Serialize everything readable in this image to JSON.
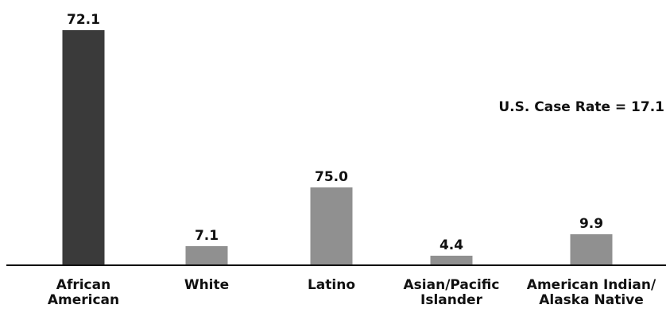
{
  "chart_data": {
    "type": "bar",
    "categories": [
      [
        "African",
        "American"
      ],
      [
        "White"
      ],
      [
        "Latino"
      ],
      [
        "Asian/Pacific",
        "Islander"
      ],
      [
        "American Indian/",
        "Alaska Native"
      ]
    ],
    "values": [
      72.1,
      7.1,
      75.0,
      4.4,
      9.9
    ],
    "value_labels": [
      "72.1",
      "7.1",
      "75.0",
      "4.4",
      "9.9"
    ],
    "bar_colors": [
      "#3a3a3a",
      "#909090",
      "#909090",
      "#909090",
      "#909090"
    ],
    "annotation": "U.S. Case Rate = 17.1",
    "title": "",
    "xlabel": "",
    "ylabel": "",
    "grid": false,
    "legend": "none"
  },
  "colors": {
    "highlight_bar": "#3a3a3a",
    "default_bar": "#909090",
    "axis": "#111111",
    "text": "#111111"
  }
}
